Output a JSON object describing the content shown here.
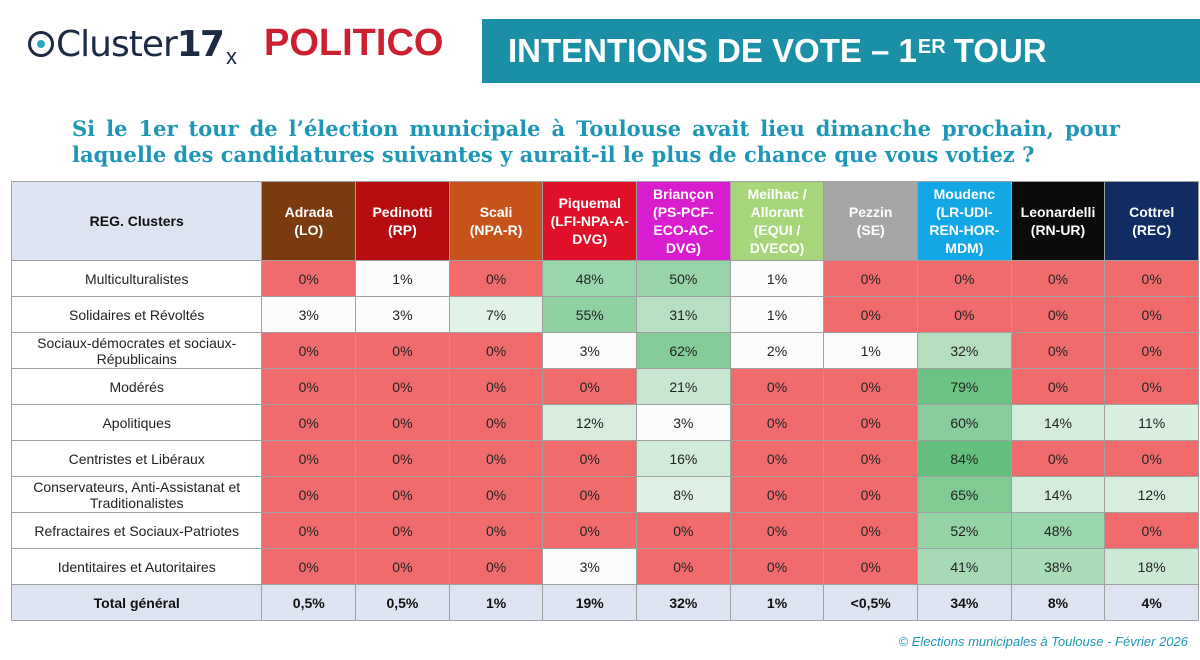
{
  "header": {
    "brand_left_word": "Cluster",
    "brand_left_number": "17",
    "separator": "x",
    "brand_right": "POLITICO",
    "banner_title": "INTENTIONS DE VOTE – 1",
    "banner_sup": "ER",
    "banner_suffix": "TOUR"
  },
  "question": "Si le 1er tour de l’élection municipale à Toulouse avait lieu dimanche prochain, pour laquelle des candidatures suivantes y aurait-il le plus de chance que vous votiez ?",
  "footer": "© Elections municipales à Toulouse - Février 2026",
  "colors": {
    "low": "#f06c6c",
    "mid_neutral": "#f7faf8",
    "high": "#63be7b"
  },
  "chart_data": {
    "type": "table",
    "corner_label": "REG. Clusters",
    "candidates": [
      {
        "name": "Adrada",
        "party": "(LO)",
        "color": "#7b3a10"
      },
      {
        "name": "Pedinotti",
        "party": "(RP)",
        "color": "#b70d11"
      },
      {
        "name": "Scali",
        "party": "(NPA-R)",
        "color": "#c6541a"
      },
      {
        "name": "Piquemal",
        "party": "(LFI-NPA-A-DVG)",
        "color": "#e01029"
      },
      {
        "name": "Briançon",
        "party": "(PS-PCF-ECO-AC-DVG)",
        "color": "#d81ecf"
      },
      {
        "name": "Meilhac /",
        "party": "Allorant (EQUI / DVECO)",
        "color": "#a7d67a"
      },
      {
        "name": "Pezzin",
        "party": "(SE)",
        "color": "#a6a6a6"
      },
      {
        "name": "Moudenc",
        "party": "(LR-UDI-REN-HOR-MDM)",
        "color": "#14a7e6"
      },
      {
        "name": "Leonardelli",
        "party": "(RN-UR)",
        "color": "#0b0b0b"
      },
      {
        "name": "Cottrel",
        "party": "(REC)",
        "color": "#0f2d63"
      }
    ],
    "header_lines": [
      [
        "Adrada",
        "(LO)"
      ],
      [
        "Pedinotti",
        "(RP)"
      ],
      [
        "Scali",
        "(NPA-R)"
      ],
      [
        "Piquemal",
        "(LFI-NPA-A-",
        "DVG)"
      ],
      [
        "Briançon",
        "(PS-PCF-",
        "ECO-AC-",
        "DVG)"
      ],
      [
        "Meilhac /",
        "Allorant",
        "(EQUI /",
        "DVECO)"
      ],
      [
        "Pezzin",
        "(SE)"
      ],
      [
        "Moudenc",
        "(LR-UDI-",
        "REN-HOR-",
        "MDM)"
      ],
      [
        "Leonardelli",
        "(RN-UR)"
      ],
      [
        "Cottrel",
        "(REC)"
      ]
    ],
    "rows": [
      {
        "label": [
          "Multiculturalistes"
        ],
        "values": [
          0,
          1,
          0,
          48,
          50,
          1,
          0,
          0,
          0,
          0
        ]
      },
      {
        "label": [
          "Solidaires et Révoltés"
        ],
        "values": [
          3,
          3,
          7,
          55,
          31,
          1,
          0,
          0,
          0,
          0
        ]
      },
      {
        "label": [
          "Sociaux-démocrates et sociaux-",
          "Républicains"
        ],
        "values": [
          0,
          0,
          0,
          3,
          62,
          2,
          1,
          32,
          0,
          0
        ]
      },
      {
        "label": [
          "Modérés"
        ],
        "values": [
          0,
          0,
          0,
          0,
          21,
          0,
          0,
          79,
          0,
          0
        ]
      },
      {
        "label": [
          "Apolitiques"
        ],
        "values": [
          0,
          0,
          0,
          12,
          3,
          0,
          0,
          60,
          14,
          11
        ]
      },
      {
        "label": [
          "Centristes et Libéraux"
        ],
        "values": [
          0,
          0,
          0,
          0,
          16,
          0,
          0,
          84,
          0,
          0
        ]
      },
      {
        "label": [
          "Conservateurs, Anti-Assistanat et",
          "Traditionalistes"
        ],
        "values": [
          0,
          0,
          0,
          0,
          8,
          0,
          0,
          65,
          14,
          12
        ]
      },
      {
        "label": [
          "Refractaires et Sociaux-Patriotes"
        ],
        "values": [
          0,
          0,
          0,
          0,
          0,
          0,
          0,
          52,
          48,
          0
        ]
      },
      {
        "label": [
          "Identitaires et Autoritaires"
        ],
        "values": [
          0,
          0,
          0,
          3,
          0,
          0,
          0,
          41,
          38,
          18
        ]
      }
    ],
    "total": {
      "label": "Total général",
      "values": [
        "0,5%",
        "0,5%",
        "1%",
        "19%",
        "32%",
        "1%",
        "<0,5%",
        "34%",
        "8%",
        "4%"
      ]
    },
    "unit": "%"
  }
}
